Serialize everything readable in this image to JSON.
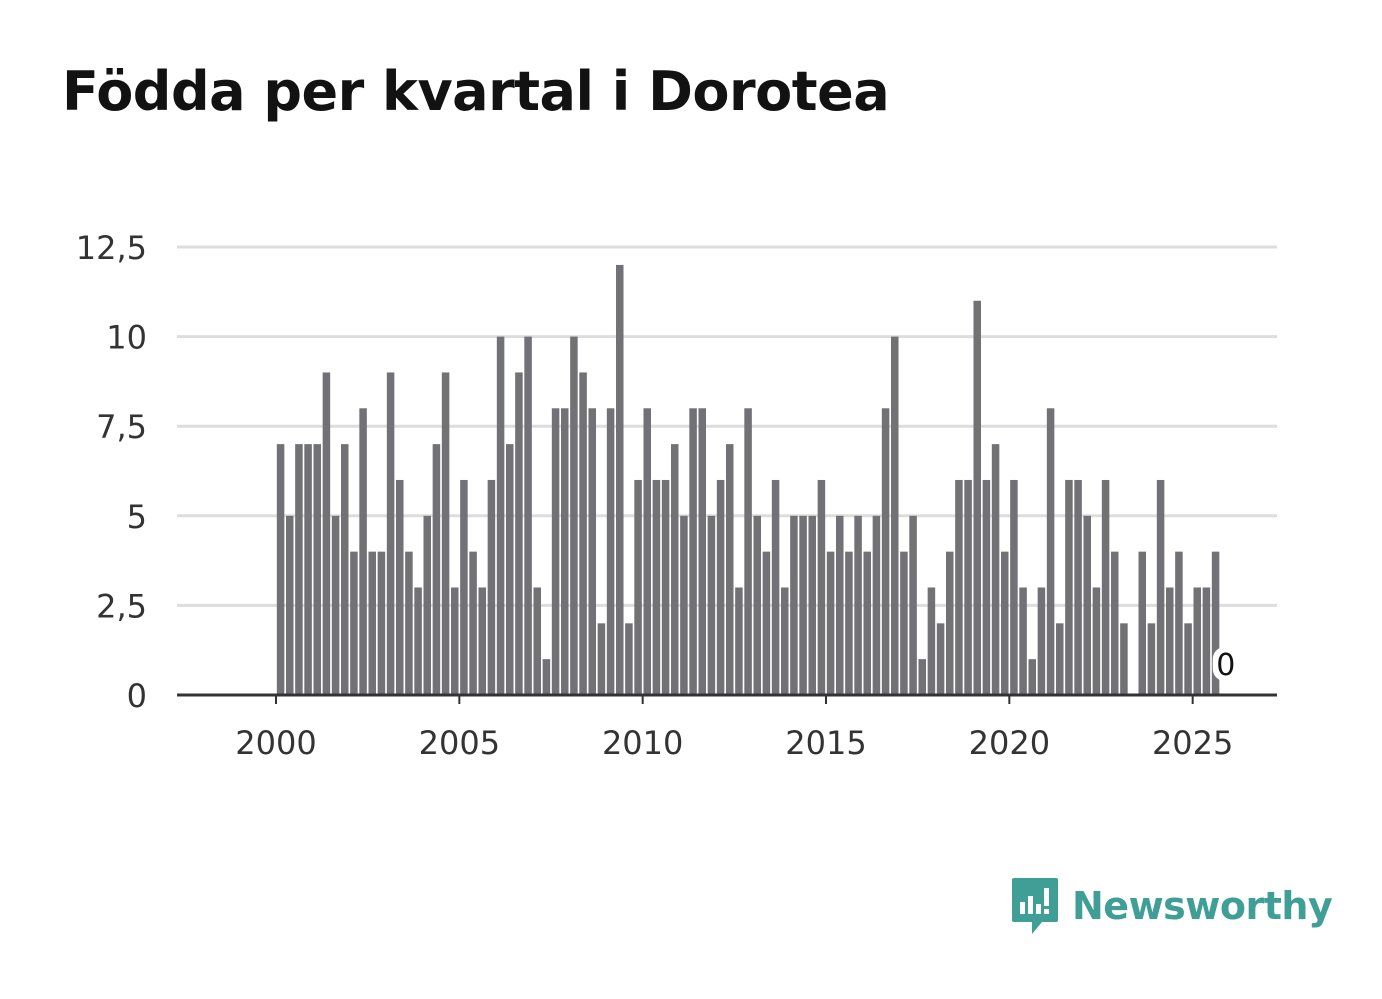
{
  "title": "Födda per kvartal i Dorotea",
  "brand": {
    "name": "Newsworthy",
    "logo_icon": "newsworthy-logo-icon"
  },
  "chart_data": {
    "type": "bar",
    "title": "Födda per kvartal i Dorotea",
    "xlabel": "",
    "ylabel": "",
    "ylim": [
      0,
      12.5
    ],
    "xlim": [
      1997.3,
      2027.3
    ],
    "yticks": [
      "0",
      "2,5",
      "5",
      "7,5",
      "10",
      "12,5"
    ],
    "ytick_values": [
      0,
      2.5,
      5,
      7.5,
      10,
      12.5
    ],
    "xticks": [
      "2000",
      "2005",
      "2010",
      "2015",
      "2020",
      "2025"
    ],
    "xtick_values": [
      2000,
      2005,
      2010,
      2015,
      2020,
      2025
    ],
    "start_year": 2000,
    "grid": true,
    "bar_color": "#727176",
    "last_value_label": "0",
    "values": [
      7,
      5,
      7,
      7,
      7,
      9,
      5,
      7,
      4,
      8,
      4,
      4,
      9,
      6,
      4,
      3,
      5,
      7,
      9,
      3,
      6,
      4,
      3,
      6,
      10,
      7,
      9,
      10,
      3,
      1,
      8,
      8,
      10,
      9,
      8,
      2,
      8,
      12,
      2,
      6,
      8,
      6,
      6,
      7,
      5,
      8,
      8,
      5,
      6,
      7,
      3,
      8,
      5,
      4,
      6,
      3,
      5,
      5,
      5,
      6,
      4,
      5,
      4,
      5,
      4,
      5,
      8,
      10,
      4,
      5,
      1,
      3,
      2,
      4,
      6,
      6,
      11,
      6,
      7,
      4,
      6,
      3,
      1,
      3,
      8,
      2,
      6,
      6,
      5,
      3,
      6,
      4,
      2,
      0,
      4,
      2,
      6,
      3,
      4,
      2,
      3,
      3,
      4,
      0
    ]
  }
}
